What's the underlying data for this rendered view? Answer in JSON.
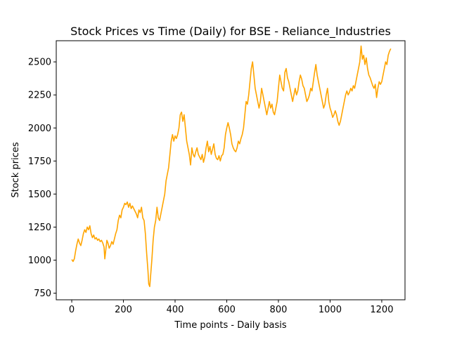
{
  "chart_data": {
    "type": "line",
    "title": "Stock Prices vs Time (Daily) for BSE - Reliance_Industries",
    "xlabel": "Time points - Daily basis",
    "ylabel": "Stock prices",
    "xlim": [
      -60,
      1290
    ],
    "ylim": [
      700,
      2660
    ],
    "xticks": [
      0,
      200,
      400,
      600,
      800,
      1000,
      1200
    ],
    "yticks": [
      750,
      1000,
      1250,
      1500,
      1750,
      2000,
      2250,
      2500
    ],
    "grid": false,
    "series": [
      {
        "color": "#ffa500",
        "points": [
          [
            0,
            1005
          ],
          [
            5,
            990
          ],
          [
            10,
            1010
          ],
          [
            15,
            1070
          ],
          [
            20,
            1120
          ],
          [
            25,
            1160
          ],
          [
            30,
            1130
          ],
          [
            35,
            1110
          ],
          [
            40,
            1150
          ],
          [
            45,
            1200
          ],
          [
            50,
            1230
          ],
          [
            55,
            1210
          ],
          [
            60,
            1250
          ],
          [
            65,
            1230
          ],
          [
            70,
            1260
          ],
          [
            75,
            1200
          ],
          [
            80,
            1170
          ],
          [
            85,
            1190
          ],
          [
            90,
            1160
          ],
          [
            95,
            1170
          ],
          [
            100,
            1150
          ],
          [
            105,
            1160
          ],
          [
            110,
            1140
          ],
          [
            115,
            1150
          ],
          [
            120,
            1130
          ],
          [
            125,
            1100
          ],
          [
            128,
            1010
          ],
          [
            132,
            1080
          ],
          [
            136,
            1150
          ],
          [
            140,
            1130
          ],
          [
            145,
            1090
          ],
          [
            150,
            1110
          ],
          [
            155,
            1140
          ],
          [
            160,
            1120
          ],
          [
            165,
            1160
          ],
          [
            170,
            1200
          ],
          [
            175,
            1230
          ],
          [
            180,
            1300
          ],
          [
            185,
            1340
          ],
          [
            190,
            1320
          ],
          [
            195,
            1380
          ],
          [
            200,
            1400
          ],
          [
            205,
            1430
          ],
          [
            210,
            1420
          ],
          [
            215,
            1440
          ],
          [
            220,
            1400
          ],
          [
            225,
            1430
          ],
          [
            230,
            1390
          ],
          [
            235,
            1410
          ],
          [
            240,
            1390
          ],
          [
            245,
            1370
          ],
          [
            250,
            1350
          ],
          [
            255,
            1320
          ],
          [
            260,
            1380
          ],
          [
            265,
            1360
          ],
          [
            270,
            1400
          ],
          [
            275,
            1320
          ],
          [
            280,
            1300
          ],
          [
            285,
            1200
          ],
          [
            290,
            1050
          ],
          [
            295,
            920
          ],
          [
            298,
            820
          ],
          [
            302,
            800
          ],
          [
            306,
            900
          ],
          [
            310,
            1000
          ],
          [
            315,
            1150
          ],
          [
            320,
            1250
          ],
          [
            325,
            1300
          ],
          [
            330,
            1400
          ],
          [
            335,
            1320
          ],
          [
            340,
            1300
          ],
          [
            345,
            1350
          ],
          [
            350,
            1400
          ],
          [
            355,
            1450
          ],
          [
            360,
            1500
          ],
          [
            365,
            1600
          ],
          [
            370,
            1650
          ],
          [
            375,
            1700
          ],
          [
            380,
            1800
          ],
          [
            385,
            1900
          ],
          [
            390,
            1950
          ],
          [
            395,
            1900
          ],
          [
            400,
            1940
          ],
          [
            405,
            1920
          ],
          [
            410,
            1950
          ],
          [
            415,
            2000
          ],
          [
            420,
            2100
          ],
          [
            425,
            2120
          ],
          [
            430,
            2050
          ],
          [
            435,
            2100
          ],
          [
            440,
            2000
          ],
          [
            445,
            1900
          ],
          [
            450,
            1850
          ],
          [
            455,
            1800
          ],
          [
            460,
            1720
          ],
          [
            465,
            1850
          ],
          [
            470,
            1800
          ],
          [
            475,
            1780
          ],
          [
            480,
            1820
          ],
          [
            485,
            1850
          ],
          [
            490,
            1800
          ],
          [
            495,
            1780
          ],
          [
            500,
            1760
          ],
          [
            505,
            1800
          ],
          [
            510,
            1740
          ],
          [
            515,
            1780
          ],
          [
            520,
            1850
          ],
          [
            525,
            1900
          ],
          [
            530,
            1820
          ],
          [
            535,
            1860
          ],
          [
            540,
            1800
          ],
          [
            545,
            1840
          ],
          [
            550,
            1880
          ],
          [
            555,
            1800
          ],
          [
            560,
            1770
          ],
          [
            565,
            1760
          ],
          [
            570,
            1790
          ],
          [
            575,
            1750
          ],
          [
            580,
            1790
          ],
          [
            585,
            1800
          ],
          [
            590,
            1850
          ],
          [
            595,
            1950
          ],
          [
            600,
            2000
          ],
          [
            605,
            2040
          ],
          [
            610,
            2000
          ],
          [
            615,
            1950
          ],
          [
            620,
            1880
          ],
          [
            625,
            1850
          ],
          [
            630,
            1830
          ],
          [
            635,
            1820
          ],
          [
            640,
            1850
          ],
          [
            645,
            1900
          ],
          [
            650,
            1880
          ],
          [
            655,
            1920
          ],
          [
            660,
            1950
          ],
          [
            665,
            2000
          ],
          [
            670,
            2100
          ],
          [
            675,
            2200
          ],
          [
            680,
            2180
          ],
          [
            685,
            2250
          ],
          [
            690,
            2350
          ],
          [
            695,
            2450
          ],
          [
            700,
            2500
          ],
          [
            705,
            2400
          ],
          [
            710,
            2300
          ],
          [
            715,
            2250
          ],
          [
            720,
            2200
          ],
          [
            725,
            2150
          ],
          [
            730,
            2200
          ],
          [
            735,
            2300
          ],
          [
            740,
            2250
          ],
          [
            745,
            2200
          ],
          [
            750,
            2150
          ],
          [
            755,
            2100
          ],
          [
            760,
            2150
          ],
          [
            765,
            2200
          ],
          [
            770,
            2150
          ],
          [
            775,
            2180
          ],
          [
            780,
            2120
          ],
          [
            785,
            2100
          ],
          [
            790,
            2150
          ],
          [
            795,
            2200
          ],
          [
            800,
            2300
          ],
          [
            805,
            2400
          ],
          [
            810,
            2350
          ],
          [
            815,
            2300
          ],
          [
            820,
            2280
          ],
          [
            825,
            2420
          ],
          [
            830,
            2450
          ],
          [
            835,
            2380
          ],
          [
            840,
            2350
          ],
          [
            845,
            2300
          ],
          [
            850,
            2250
          ],
          [
            855,
            2200
          ],
          [
            860,
            2250
          ],
          [
            865,
            2300
          ],
          [
            870,
            2250
          ],
          [
            875,
            2280
          ],
          [
            880,
            2350
          ],
          [
            885,
            2400
          ],
          [
            890,
            2370
          ],
          [
            895,
            2320
          ],
          [
            900,
            2300
          ],
          [
            905,
            2250
          ],
          [
            910,
            2200
          ],
          [
            915,
            2220
          ],
          [
            920,
            2250
          ],
          [
            925,
            2300
          ],
          [
            930,
            2280
          ],
          [
            935,
            2350
          ],
          [
            940,
            2420
          ],
          [
            945,
            2480
          ],
          [
            950,
            2400
          ],
          [
            955,
            2350
          ],
          [
            960,
            2300
          ],
          [
            965,
            2250
          ],
          [
            970,
            2200
          ],
          [
            975,
            2150
          ],
          [
            980,
            2180
          ],
          [
            985,
            2250
          ],
          [
            990,
            2300
          ],
          [
            995,
            2200
          ],
          [
            1000,
            2150
          ],
          [
            1005,
            2120
          ],
          [
            1010,
            2080
          ],
          [
            1015,
            2100
          ],
          [
            1020,
            2130
          ],
          [
            1025,
            2100
          ],
          [
            1030,
            2050
          ],
          [
            1035,
            2020
          ],
          [
            1040,
            2050
          ],
          [
            1045,
            2100
          ],
          [
            1050,
            2150
          ],
          [
            1055,
            2200
          ],
          [
            1060,
            2250
          ],
          [
            1065,
            2280
          ],
          [
            1070,
            2250
          ],
          [
            1075,
            2270
          ],
          [
            1080,
            2300
          ],
          [
            1085,
            2280
          ],
          [
            1090,
            2320
          ],
          [
            1095,
            2300
          ],
          [
            1100,
            2350
          ],
          [
            1105,
            2400
          ],
          [
            1110,
            2450
          ],
          [
            1115,
            2500
          ],
          [
            1120,
            2620
          ],
          [
            1125,
            2520
          ],
          [
            1130,
            2550
          ],
          [
            1135,
            2480
          ],
          [
            1140,
            2530
          ],
          [
            1145,
            2450
          ],
          [
            1150,
            2400
          ],
          [
            1155,
            2380
          ],
          [
            1160,
            2350
          ],
          [
            1165,
            2320
          ],
          [
            1170,
            2300
          ],
          [
            1175,
            2330
          ],
          [
            1180,
            2230
          ],
          [
            1185,
            2300
          ],
          [
            1190,
            2350
          ],
          [
            1195,
            2330
          ],
          [
            1200,
            2350
          ],
          [
            1205,
            2400
          ],
          [
            1210,
            2450
          ],
          [
            1215,
            2500
          ],
          [
            1220,
            2480
          ],
          [
            1225,
            2550
          ],
          [
            1230,
            2580
          ],
          [
            1235,
            2600
          ]
        ]
      }
    ]
  }
}
